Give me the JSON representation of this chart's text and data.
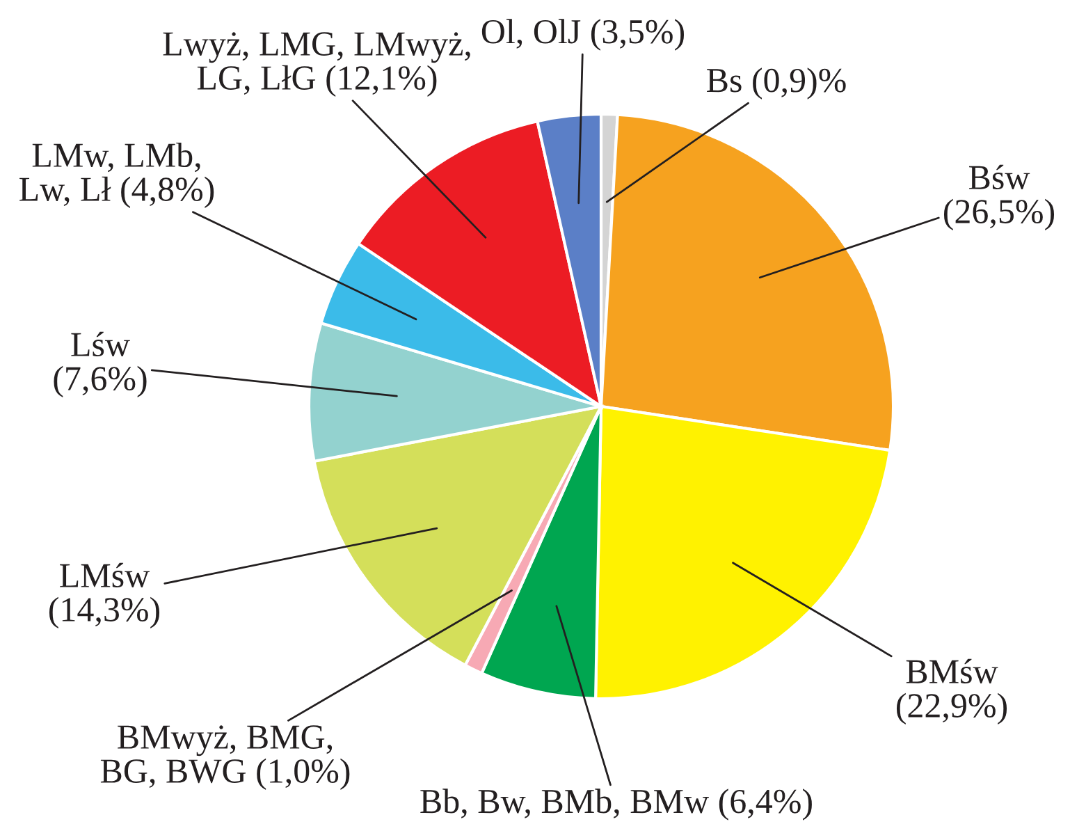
{
  "chart_data": {
    "type": "pie",
    "categories": [
      "Bs (0,9)%",
      "Bśw\n(26,5%)",
      "BMśw\n(22,9%)",
      "Bb, Bw, BMb, BMw (6,4%)",
      "BMwyż, BMG,\nBG, BWG (1,0%)",
      "LMśw\n(14,3%)",
      "Lśw\n(7,6%)",
      "LMw, LMb,\nLw, Lł (4,8%)",
      "Lwyż, LMG, LMwyż,\nLG, LłG (12,1%)",
      "Ol, OlJ (3,5%)"
    ],
    "values": [
      0.9,
      26.5,
      22.9,
      6.4,
      1.0,
      14.3,
      7.6,
      4.8,
      12.1,
      3.5
    ],
    "colors": [
      "#d4d4d4",
      "#f6a21f",
      "#fff200",
      "#00a650",
      "#f7a9b4",
      "#d4df5a",
      "#93d2cf",
      "#3bbbe9",
      "#ec1c24",
      "#5b7fc7"
    ]
  }
}
